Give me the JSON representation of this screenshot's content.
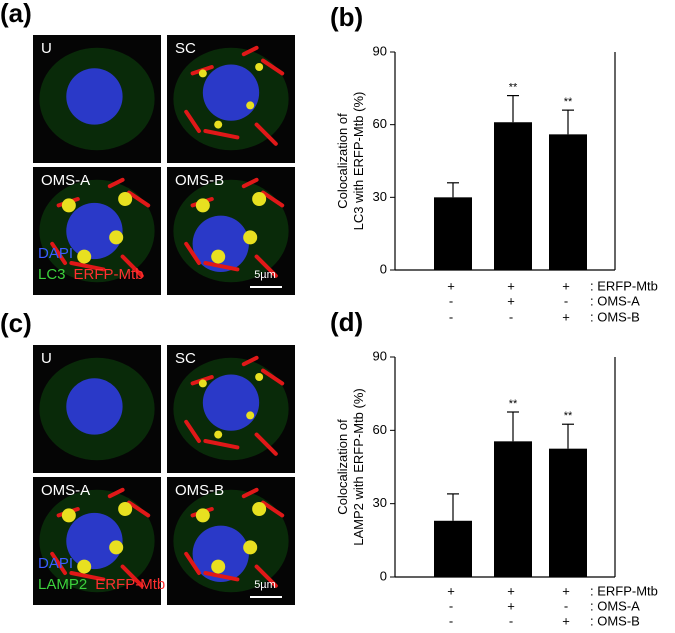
{
  "panels": [
    {
      "label": "(a)",
      "images": [
        "U",
        "SC",
        "OMS-A",
        "OMS-B"
      ],
      "legend": [
        "DAPI",
        "LC3",
        "ERFP-Mtb"
      ],
      "scale": "5µm"
    },
    {
      "label": "(c)",
      "images": [
        "U",
        "SC",
        "OMS-A",
        "OMS-B"
      ],
      "legend": [
        "DAPI",
        "LAMP2",
        "ERFP-Mtb"
      ],
      "scale": "5µm"
    }
  ],
  "chart_data": [
    {
      "type": "bar",
      "panel_label": "(b)",
      "ylabel": [
        "Colocalization of",
        "LC3 with ERFP-Mtb (%)"
      ],
      "categories": [
        null,
        null,
        null
      ],
      "values": [
        30,
        61,
        56
      ],
      "errors": [
        6,
        11,
        10
      ],
      "annotations": [
        null,
        "**",
        "**"
      ],
      "color": "#000000",
      "ylim": [
        0,
        90
      ],
      "yticks": [
        0,
        30,
        60,
        90
      ],
      "conditions": [
        {
          "name": ": ERFP-Mtb",
          "signs": [
            "+",
            "+",
            "+"
          ]
        },
        {
          "name": ": OMS-A",
          "signs": [
            "-",
            "+",
            "-"
          ]
        },
        {
          "name": ": OMS-B",
          "signs": [
            "-",
            "-",
            "+"
          ]
        }
      ]
    },
    {
      "type": "bar",
      "panel_label": "(d)",
      "ylabel": [
        "Colocalization of",
        "LAMP2 with ERFP-Mtb (%)"
      ],
      "categories": [
        null,
        null,
        null
      ],
      "values": [
        23,
        55.5,
        52.5
      ],
      "errors": [
        11,
        12,
        10
      ],
      "annotations": [
        null,
        "**",
        "**"
      ],
      "color": "#000000",
      "ylim": [
        0,
        90
      ],
      "yticks": [
        0,
        30,
        60,
        90
      ],
      "conditions": [
        {
          "name": ": ERFP-Mtb",
          "signs": [
            "+",
            "+",
            "+"
          ]
        },
        {
          "name": ": OMS-A",
          "signs": [
            "-",
            "+",
            "-"
          ]
        },
        {
          "name": ": OMS-B",
          "signs": [
            "-",
            "-",
            "+"
          ]
        }
      ]
    }
  ]
}
